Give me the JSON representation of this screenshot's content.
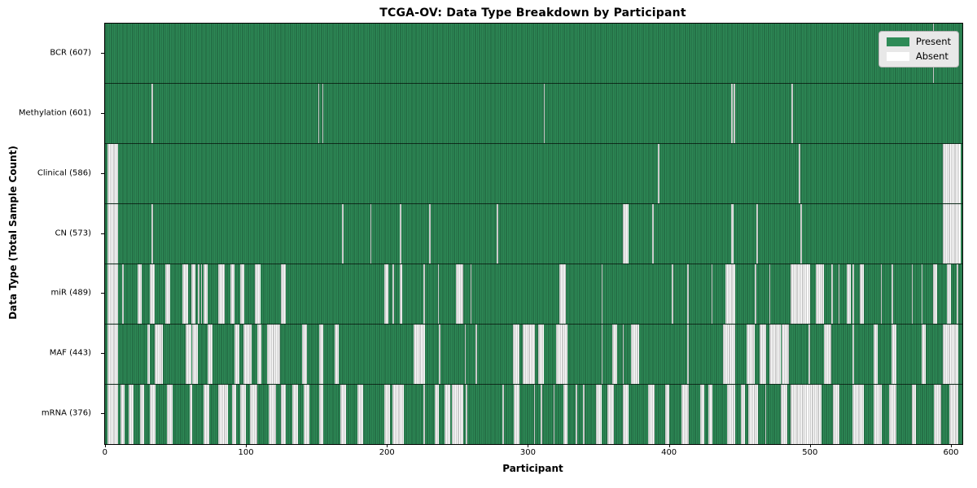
{
  "title": "TCGA-OV: Data Type Breakdown by Participant",
  "xlabel": "Participant",
  "ylabel": "Data Type (Total Sample Count)",
  "legend": {
    "present_label": "Present",
    "absent_label": "Absent"
  },
  "colors": {
    "present": "#2e8b57",
    "present_edge": "#1c5737",
    "absent": "#ffffff",
    "absent_edge": "#949494",
    "separator": "rgba(0,0,0,0.65)",
    "legend_bg": "#e8e8e8"
  },
  "chart_data": {
    "type": "heatmap",
    "title": "TCGA-OV: Data Type Breakdown by Participant",
    "xlabel": "Participant",
    "ylabel": "Data Type (Total Sample Count)",
    "legend": [
      "Present",
      "Absent"
    ],
    "legend_position": "upper right",
    "n_participants": 608,
    "x_range": [
      0,
      607
    ],
    "x_ticks": [
      0,
      100,
      200,
      300,
      400,
      500,
      600
    ],
    "rows": [
      {
        "name": "BCR",
        "label": "BCR (607)",
        "present_count": 607,
        "absent_count": 1,
        "absent_ranges": [
          [
            587,
            587
          ]
        ]
      },
      {
        "name": "Methylation",
        "label": "Methylation (601)",
        "present_count": 601,
        "absent_count": 7,
        "absent_ranges": [
          [
            33,
            33
          ],
          [
            151,
            151
          ],
          [
            154,
            154
          ],
          [
            311,
            311
          ],
          [
            444,
            444
          ],
          [
            446,
            446
          ],
          [
            487,
            487
          ]
        ]
      },
      {
        "name": "Clinical",
        "label": "Clinical (586)",
        "present_count": 586,
        "absent_count": 22,
        "absent_ranges": [
          [
            2,
            8
          ],
          [
            392,
            392
          ],
          [
            492,
            492
          ],
          [
            594,
            606
          ]
        ]
      },
      {
        "name": "CN",
        "label": "CN (573)",
        "present_count": 573,
        "absent_count": 35,
        "absent_ranges": [
          [
            2,
            8
          ],
          [
            33,
            33
          ],
          [
            168,
            168
          ],
          [
            188,
            188
          ],
          [
            209,
            209
          ],
          [
            230,
            230
          ],
          [
            278,
            278
          ],
          [
            367,
            370
          ],
          [
            388,
            388
          ],
          [
            444,
            445
          ],
          [
            462,
            462
          ],
          [
            493,
            493
          ],
          [
            594,
            606
          ]
        ]
      },
      {
        "name": "miR",
        "label": "miR (489)",
        "present_count": 489,
        "absent_count": 119,
        "absent_ranges": [
          [
            2,
            8
          ],
          [
            12,
            12
          ],
          [
            23,
            25
          ],
          [
            32,
            34
          ],
          [
            43,
            45
          ],
          [
            55,
            58
          ],
          [
            61,
            63
          ],
          [
            66,
            66
          ],
          [
            68,
            68
          ],
          [
            70,
            72
          ],
          [
            80,
            84
          ],
          [
            89,
            91
          ],
          [
            96,
            98
          ],
          [
            106,
            109
          ],
          [
            125,
            127
          ],
          [
            198,
            200
          ],
          [
            204,
            204
          ],
          [
            209,
            210
          ],
          [
            226,
            226
          ],
          [
            236,
            236
          ],
          [
            249,
            253
          ],
          [
            259,
            259
          ],
          [
            322,
            326
          ],
          [
            352,
            352
          ],
          [
            402,
            402
          ],
          [
            413,
            413
          ],
          [
            430,
            430
          ],
          [
            440,
            446
          ],
          [
            461,
            461
          ],
          [
            471,
            471
          ],
          [
            486,
            499
          ],
          [
            504,
            509
          ],
          [
            515,
            515
          ],
          [
            520,
            520
          ],
          [
            526,
            528
          ],
          [
            530,
            530
          ],
          [
            535,
            537
          ],
          [
            550,
            550
          ],
          [
            558,
            558
          ],
          [
            572,
            572
          ],
          [
            579,
            579
          ],
          [
            587,
            589
          ],
          [
            597,
            599
          ],
          [
            604,
            604
          ]
        ]
      },
      {
        "name": "MAF",
        "label": "MAF (443)",
        "present_count": 443,
        "absent_count": 165,
        "absent_ranges": [
          [
            2,
            8
          ],
          [
            30,
            31
          ],
          [
            35,
            40
          ],
          [
            57,
            60
          ],
          [
            62,
            65
          ],
          [
            73,
            75
          ],
          [
            92,
            94
          ],
          [
            98,
            103
          ],
          [
            108,
            110
          ],
          [
            115,
            123
          ],
          [
            140,
            142
          ],
          [
            152,
            154
          ],
          [
            163,
            165
          ],
          [
            219,
            226
          ],
          [
            237,
            237
          ],
          [
            255,
            255
          ],
          [
            263,
            263
          ],
          [
            289,
            293
          ],
          [
            296,
            304
          ],
          [
            307,
            310
          ],
          [
            320,
            327
          ],
          [
            352,
            352
          ],
          [
            360,
            362
          ],
          [
            367,
            367
          ],
          [
            373,
            378
          ],
          [
            413,
            413
          ],
          [
            438,
            446
          ],
          [
            455,
            460
          ],
          [
            464,
            468
          ],
          [
            471,
            478
          ],
          [
            480,
            484
          ],
          [
            499,
            499
          ],
          [
            510,
            514
          ],
          [
            530,
            530
          ],
          [
            545,
            547
          ],
          [
            558,
            560
          ],
          [
            579,
            581
          ],
          [
            594,
            604
          ]
        ]
      },
      {
        "name": "mRNA",
        "label": "mRNA (376)",
        "present_count": 376,
        "absent_count": 232,
        "absent_ranges": [
          [
            2,
            8
          ],
          [
            11,
            13
          ],
          [
            17,
            19
          ],
          [
            25,
            27
          ],
          [
            32,
            35
          ],
          [
            44,
            47
          ],
          [
            60,
            61
          ],
          [
            70,
            73
          ],
          [
            80,
            86
          ],
          [
            90,
            92
          ],
          [
            96,
            99
          ],
          [
            103,
            107
          ],
          [
            116,
            120
          ],
          [
            125,
            127
          ],
          [
            133,
            136
          ],
          [
            141,
            144
          ],
          [
            152,
            154
          ],
          [
            167,
            170
          ],
          [
            179,
            182
          ],
          [
            198,
            201
          ],
          [
            204,
            211
          ],
          [
            226,
            226
          ],
          [
            234,
            236
          ],
          [
            241,
            244
          ],
          [
            246,
            253
          ],
          [
            256,
            256
          ],
          [
            282,
            282
          ],
          [
            290,
            293
          ],
          [
            304,
            304
          ],
          [
            309,
            309
          ],
          [
            318,
            318
          ],
          [
            325,
            327
          ],
          [
            334,
            334
          ],
          [
            339,
            339
          ],
          [
            348,
            351
          ],
          [
            356,
            360
          ],
          [
            367,
            370
          ],
          [
            385,
            389
          ],
          [
            397,
            399
          ],
          [
            409,
            413
          ],
          [
            422,
            424
          ],
          [
            428,
            430
          ],
          [
            441,
            446
          ],
          [
            451,
            453
          ],
          [
            456,
            462
          ],
          [
            468,
            468
          ],
          [
            479,
            483
          ],
          [
            486,
            507
          ],
          [
            516,
            520
          ],
          [
            530,
            537
          ],
          [
            545,
            550
          ],
          [
            556,
            560
          ],
          [
            572,
            574
          ],
          [
            588,
            592
          ],
          [
            599,
            604
          ]
        ]
      }
    ]
  }
}
